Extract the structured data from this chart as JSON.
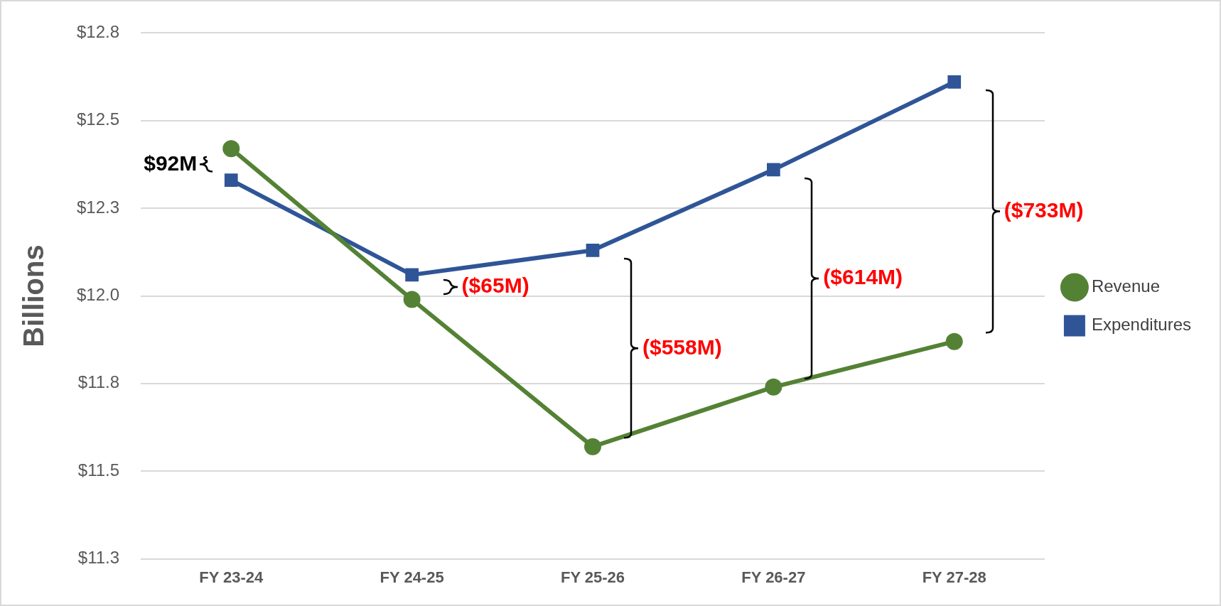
{
  "chart_data": {
    "type": "line",
    "ylabel": "Billions",
    "categories": [
      "FY 23-24",
      "FY 24-25",
      "FY 25-26",
      "FY 26-27",
      "FY 27-28"
    ],
    "series": [
      {
        "name": "Revenue",
        "color": "#548235",
        "marker": "circle",
        "values": [
          12.42,
          11.99,
          11.57,
          11.74,
          11.87
        ]
      },
      {
        "name": "Expenditures",
        "color": "#2f5597",
        "marker": "square",
        "values": [
          12.33,
          12.06,
          12.13,
          12.36,
          12.61
        ]
      }
    ],
    "ylim": [
      11.25,
      12.75
    ],
    "yticks": [
      {
        "value": 11.25,
        "label": "$11.3"
      },
      {
        "value": 11.5,
        "label": "$11.5"
      },
      {
        "value": 11.75,
        "label": "$11.8"
      },
      {
        "value": 12.0,
        "label": "$12.0"
      },
      {
        "value": 12.25,
        "label": "$12.3"
      },
      {
        "value": 12.5,
        "label": "$12.5"
      },
      {
        "value": 12.75,
        "label": "$12.8"
      }
    ],
    "grid": "y",
    "legend": "right",
    "line_style": "solid",
    "annotations": [
      "$92M",
      "($65M)",
      "($558M)",
      "($614M)",
      "($733M)"
    ]
  }
}
